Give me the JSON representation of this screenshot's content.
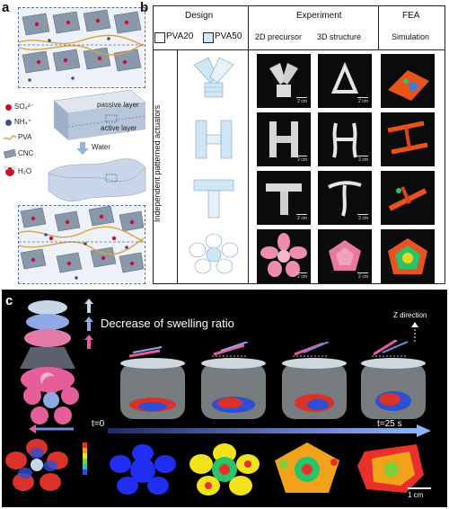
{
  "panel_labels": {
    "a": "a",
    "b": "b",
    "c": "c"
  },
  "panel_a": {
    "legend": {
      "so4": "SO₄²⁻",
      "nh4": "NH₄⁺",
      "pva": "PVA",
      "cnc": "CNC",
      "h2o": "H₂O"
    },
    "passive_layer": "passive layer",
    "active_layer": "active layer",
    "water": "Water"
  },
  "panel_b": {
    "design_header": "Design",
    "experiment_header": "Experiment",
    "fea_header": "FEA",
    "simulation_header": "Simulation",
    "legend_pva20": "PVA20",
    "legend_pva50": "PVA50",
    "col_2d": "2D precursor",
    "col_3d": "3D structure",
    "row_axis_label": "Independent patterned actuators",
    "scale": "2 cm",
    "colors": {
      "pva20": "#ffffff",
      "pva50": "#cfe6f5"
    }
  },
  "panel_c": {
    "title": "Decrease of swelling ratio",
    "z_direction": "Z direction",
    "t_start": "t=0",
    "t_end": "t=25 s",
    "scale": "1 cm"
  }
}
